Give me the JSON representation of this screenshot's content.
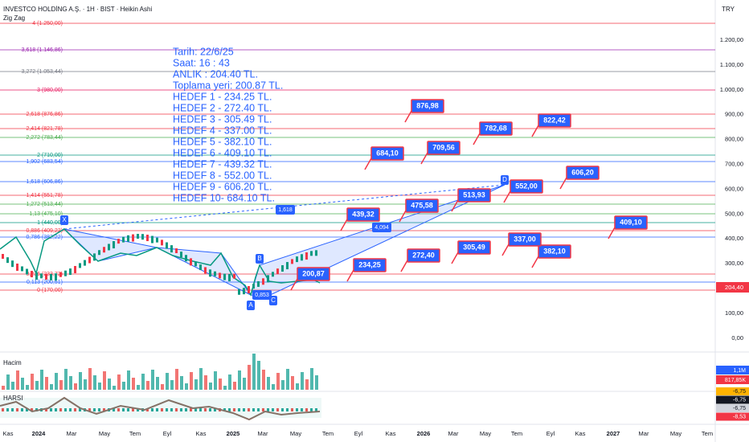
{
  "header": {
    "title": "INVESTCO HOLDİNG A.Ş. · 1H · BIST · Heikin Ashi",
    "indicator": "Zig Zag",
    "currency": "TRY"
  },
  "price_axis": {
    "labels": [
      "1.200,00",
      "1.100,00",
      "1.000,00",
      "900,00",
      "800,00",
      "700,00",
      "600,00",
      "500,00",
      "400,00",
      "300,00",
      "200,00",
      "100,00",
      "0,00"
    ],
    "last_price": "204,40"
  },
  "fib_levels": [
    {
      "label": "4 (1.250,00)",
      "color": "#f23645"
    },
    {
      "label": "3,618 (1.146,86)",
      "color": "#9c27b0"
    },
    {
      "label": "3,272 (1.053,44)",
      "color": "#787b86"
    },
    {
      "label": "3 (980,00)",
      "color": "#e91e63"
    },
    {
      "label": "2,618 (876,86)",
      "color": "#f23645"
    },
    {
      "label": "2,414 (821,78)",
      "color": "#f23645"
    },
    {
      "label": "2,272 (783,44)",
      "color": "#4caf50"
    },
    {
      "label": "2 (710,00)",
      "color": "#089981"
    },
    {
      "label": "1,902 (683,54)",
      "color": "#2962ff"
    },
    {
      "label": "1,618 (606,86)",
      "color": "#2962ff"
    },
    {
      "label": "1,414 (551,78)",
      "color": "#f23645"
    },
    {
      "label": "1,272 (513,44)",
      "color": "#4caf50"
    },
    {
      "label": "1,13 (475,10)",
      "color": "#4caf50"
    },
    {
      "label": "1 (440,00)",
      "color": "#089981"
    },
    {
      "label": "0,886 (409,22)",
      "color": "#f23645"
    },
    {
      "label": "0,786 (382,22)",
      "color": "#2962ff"
    },
    {
      "label": "0,236 (233,72)",
      "color": "#f23645"
    },
    {
      "label": "0,113 (200,51)",
      "color": "#2962ff"
    },
    {
      "label": "0 (170,00)",
      "color": "#f23645"
    }
  ],
  "note": {
    "lines": [
      "Tarih:   22/6/25",
      "Saat:     16 : 43",
      "ANLIK :  204.40 TL.",
      "Toplama yeri: 200.87 TL.",
      "HEDEF 1 - 234.25 TL.",
      "HEDEF 2 - 272.40 TL.",
      "HEDEF 3 - 305.49 TL.",
      "HEDEF 4 - 337.00 TL.",
      "HEDEF 5 - 382.10 TL.",
      "HEDEF 6 - 409.10 TL.",
      "HEDEF 7 - 439.32 TL.",
      "HEDEF 8 - 552.00 TL.",
      "HEDEF 9 - 606.20 TL.",
      "HEDEF 10- 684.10 TL."
    ]
  },
  "targets": [
    "876,98",
    "684,10",
    "709,56",
    "782,68",
    "822,42",
    "606,20",
    "552,00",
    "513,93",
    "475,58",
    "439,32",
    "409,10",
    "382,10",
    "337,00",
    "305,49",
    "272,40",
    "234,25",
    "200,87"
  ],
  "pattern_points": [
    "X",
    "B",
    "A",
    "C",
    "D"
  ],
  "pattern_ratios": [
    "1,618",
    "4,094",
    "0,853"
  ],
  "time_axis": [
    "Kas",
    "2024",
    "Mar",
    "May",
    "Tem",
    "Eyl",
    "Kas",
    "2025",
    "Mar",
    "May",
    "Tem",
    "Eyl",
    "Kas",
    "2026",
    "Mar",
    "May",
    "Tem",
    "Eyl",
    "Kas",
    "2027",
    "Mar",
    "May",
    "Tem"
  ],
  "volume": {
    "title": "Hacim",
    "labels": [
      "1,1M",
      "817,85K"
    ]
  },
  "harsi": {
    "title": "HARSI",
    "labels": [
      "-6,75",
      "-6,75",
      "-6,75",
      "-8,53"
    ]
  }
}
